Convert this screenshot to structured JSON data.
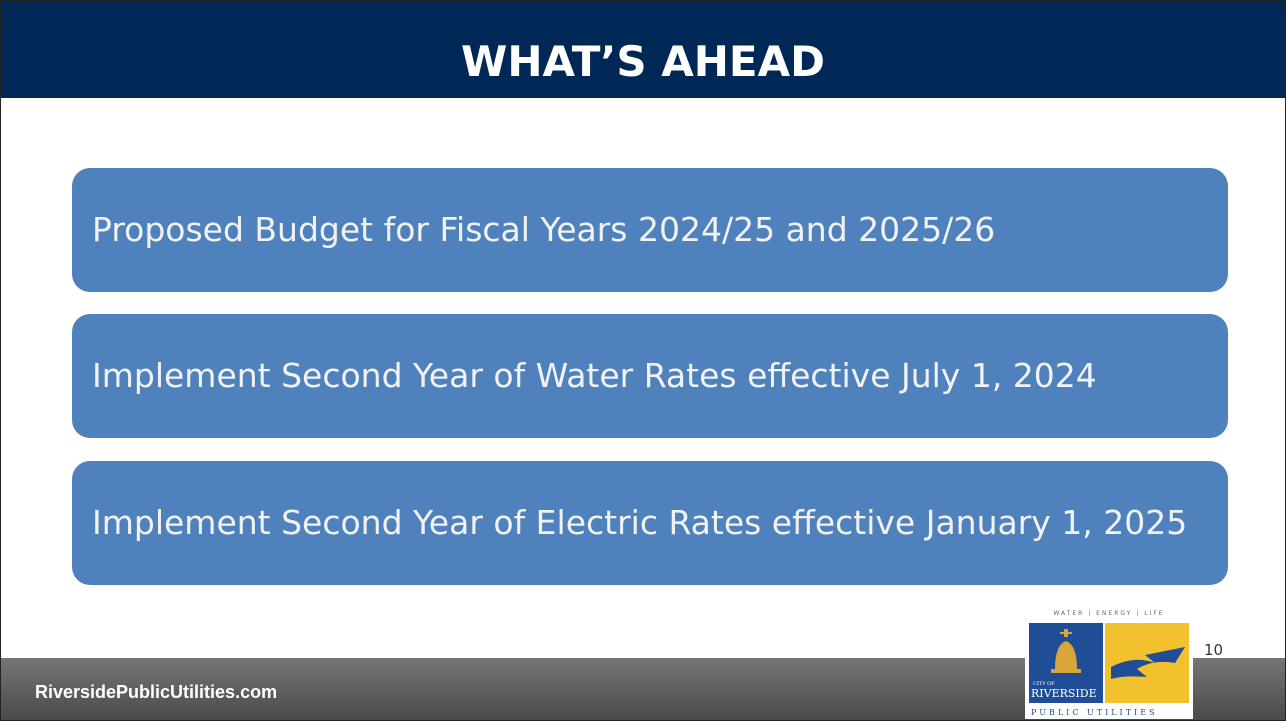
{
  "header": {
    "title": "WHAT’S AHEAD"
  },
  "items": [
    "Proposed Budget for Fiscal Years 2024/25 and 2025/26",
    "Implement Second Year of Water Rates effective July 1, 2024",
    "Implement Second Year of Electric Rates effective January 1, 2025"
  ],
  "page_number": "10",
  "logo": {
    "tagline": "WATER | ENERGY | LIFE",
    "city_of": "CITY OF",
    "city": "RIVERSIDE",
    "name": "PUBLIC UTILITIES"
  },
  "footer": {
    "website": "RiversidePublicUtilities.com"
  }
}
